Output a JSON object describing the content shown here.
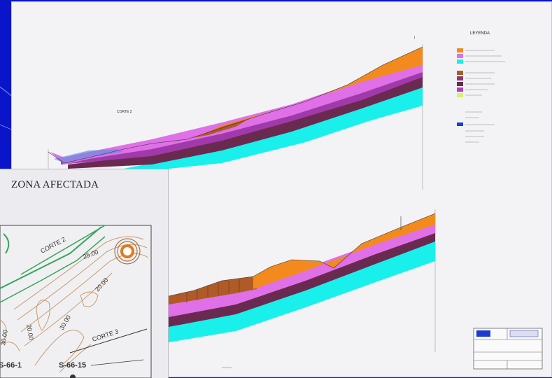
{
  "inset": {
    "title": "ZONA AFECTADA",
    "labels": {
      "corte_2": "CORTE 2",
      "corte_3": "CORTE 3",
      "contour_a": "25.00",
      "contour_b": "20.00",
      "contour_c": "30.00",
      "contour_d": "20.00",
      "contour_e": "30.00",
      "sondeo_1": "S-66-1",
      "sondeo_15": "S-66-15"
    }
  },
  "sheet": {
    "section_1_label": "CORTE 2",
    "legend_title": "LEYENDA"
  },
  "colors": {
    "slide_bg": "#0a14c8",
    "orange_layer": "#f28a1e",
    "brown_layer": "#b05a28",
    "pink_layer": "#e070e8",
    "violet_layer": "#b040b8",
    "dark_layer": "#6a2a50",
    "cyan_layer": "#19f0ec",
    "map_green": "#3aa35a",
    "map_contour": "#c79a70"
  }
}
